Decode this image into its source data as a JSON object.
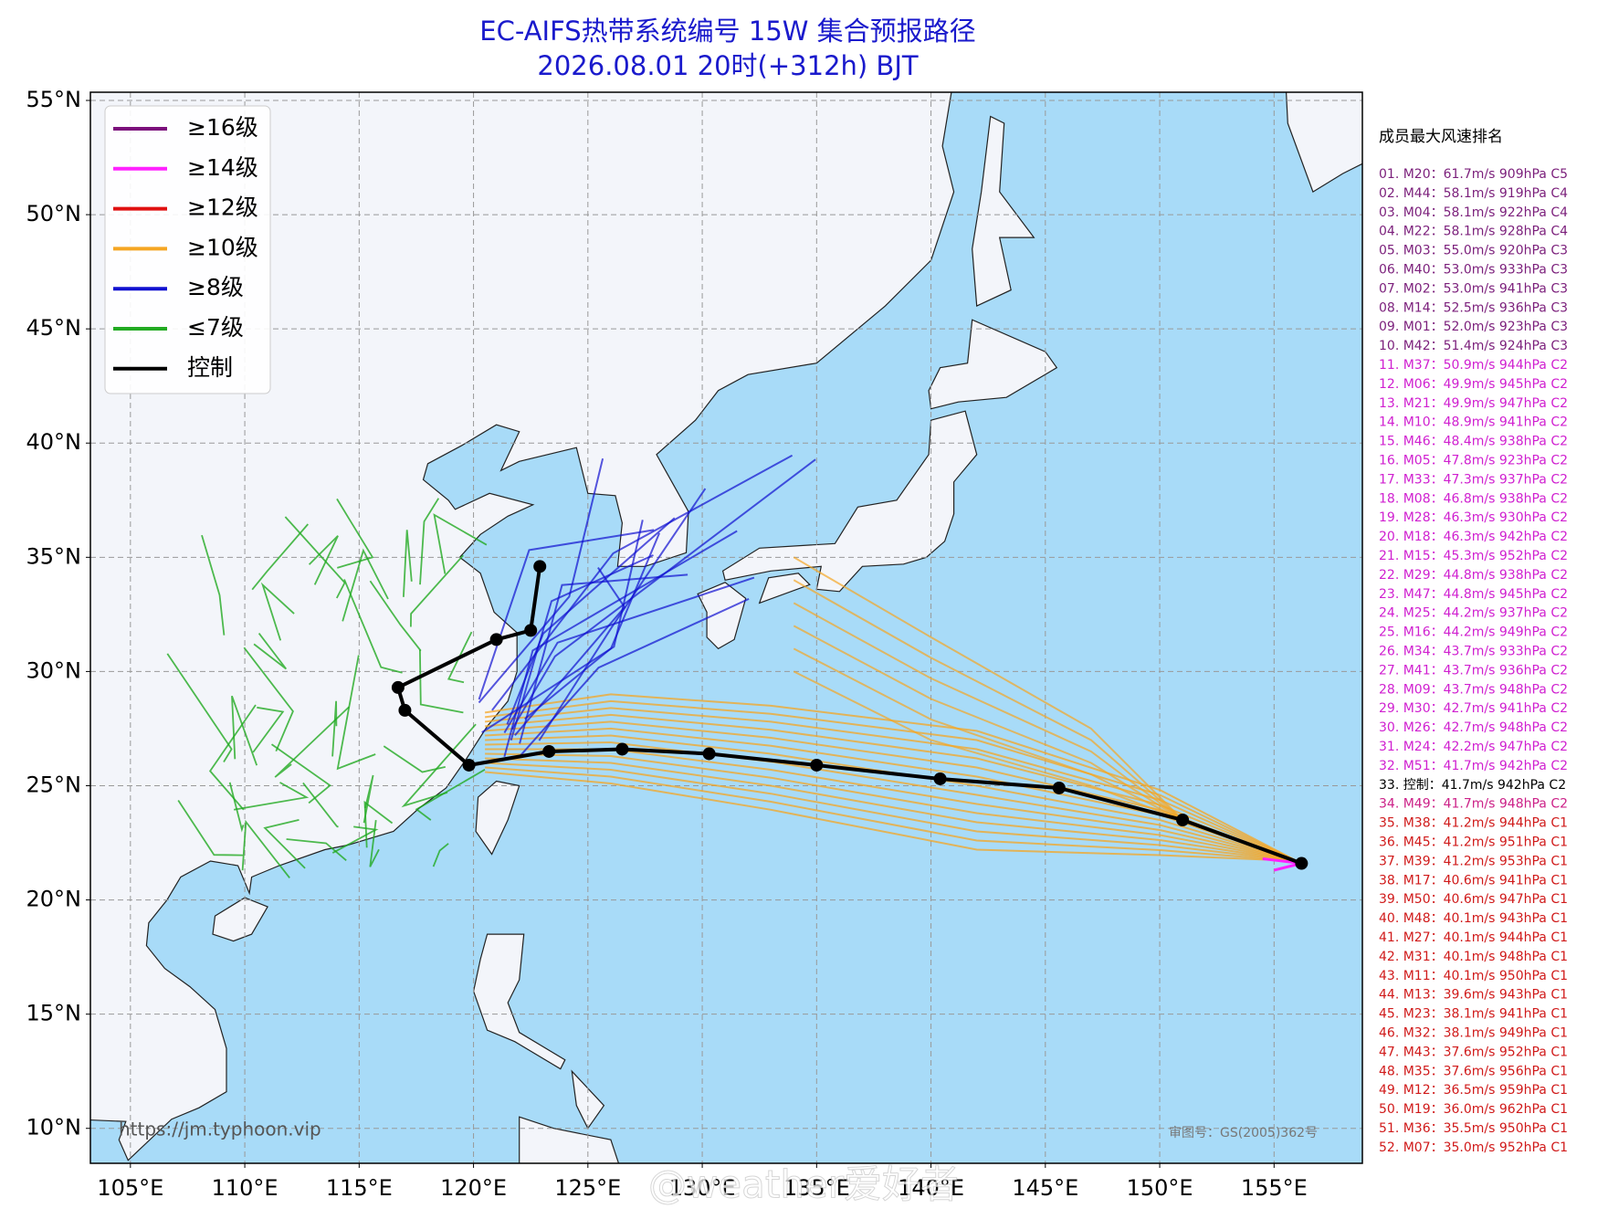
{
  "header": {
    "title": "EC-AIFS热带系统编号 15W 集合预报路径",
    "subtitle": "2026.08.01 20时(+312h) BJT"
  },
  "map": {
    "lon_range": [
      103.25,
      158.86
    ],
    "lat_range": [
      8.47,
      55.36
    ],
    "lat_ticks": [
      {
        "value": 55,
        "label": "55°N"
      },
      {
        "value": 50,
        "label": "50°N"
      },
      {
        "value": 45,
        "label": "45°N"
      },
      {
        "value": 40,
        "label": "40°N"
      },
      {
        "value": 35,
        "label": "35°N"
      },
      {
        "value": 30,
        "label": "30°N"
      },
      {
        "value": 25,
        "label": "25°N"
      },
      {
        "value": 20,
        "label": "20°N"
      },
      {
        "value": 15,
        "label": "15°N"
      },
      {
        "value": 10,
        "label": "10°N"
      }
    ],
    "lon_ticks": [
      {
        "value": 105,
        "label": "105°E"
      },
      {
        "value": 110,
        "label": "110°E"
      },
      {
        "value": 115,
        "label": "115°E"
      },
      {
        "value": 120,
        "label": "120°E"
      },
      {
        "value": 125,
        "label": "125°E"
      },
      {
        "value": 130,
        "label": "130°E"
      },
      {
        "value": 135,
        "label": "135°E"
      },
      {
        "value": 140,
        "label": "140°E"
      },
      {
        "value": 145,
        "label": "145°E"
      },
      {
        "value": 150,
        "label": "150°E"
      },
      {
        "value": 155,
        "label": "155°E"
      }
    ],
    "grid": true
  },
  "legend": [
    {
      "label": "≥16级",
      "color": "#7b0f7b"
    },
    {
      "label": "≥14级",
      "color": "#ff22ff"
    },
    {
      "label": "≥12级",
      "color": "#e01010"
    },
    {
      "label": "≥10级",
      "color": "#f5a623"
    },
    {
      "label": "≥8级",
      "color": "#1010d0"
    },
    {
      "label": "≤7级",
      "color": "#22aa22"
    },
    {
      "label": "控制",
      "color": "#000000"
    }
  ],
  "control_track": {
    "color": "#000000",
    "lon": [
      156.2,
      151.0,
      145.6,
      140.4,
      135.0,
      130.3,
      126.5,
      123.3,
      119.8,
      117.0,
      116.7,
      121.0,
      122.5,
      122.9
    ],
    "lat": [
      21.6,
      23.5,
      24.9,
      25.3,
      25.9,
      26.4,
      26.6,
      26.5,
      25.9,
      28.3,
      29.3,
      31.4,
      31.8,
      34.6
    ]
  },
  "ranking": {
    "title": "成员最大风速排名",
    "items": [
      {
        "text": "01. M20：61.7m/s 909hPa C5",
        "color": "#7b1f7b"
      },
      {
        "text": "02. M44：58.1m/s 919hPa C4",
        "color": "#7b1f7b"
      },
      {
        "text": "03. M04：58.1m/s 922hPa C4",
        "color": "#7b1f7b"
      },
      {
        "text": "04. M22：58.1m/s 928hPa C4",
        "color": "#7b1f7b"
      },
      {
        "text": "05. M03：55.0m/s 920hPa C3",
        "color": "#7b1f7b"
      },
      {
        "text": "06. M40：53.0m/s 933hPa C3",
        "color": "#7b1f7b"
      },
      {
        "text": "07. M02：53.0m/s 941hPa C3",
        "color": "#7b1f7b"
      },
      {
        "text": "08. M14：52.5m/s 936hPa C3",
        "color": "#7b1f7b"
      },
      {
        "text": "09. M01：52.0m/s 923hPa C3",
        "color": "#7b1f7b"
      },
      {
        "text": "10. M42：51.4m/s 924hPa C3",
        "color": "#7b1f7b"
      },
      {
        "text": "11. M37：50.9m/s 944hPa C2",
        "color": "#d020d0"
      },
      {
        "text": "12. M06：49.9m/s 945hPa C2",
        "color": "#d020d0"
      },
      {
        "text": "13. M21：49.9m/s 947hPa C2",
        "color": "#d020d0"
      },
      {
        "text": "14. M10：48.9m/s 941hPa C2",
        "color": "#d020d0"
      },
      {
        "text": "15. M46：48.4m/s 938hPa C2",
        "color": "#d020d0"
      },
      {
        "text": "16. M05：47.8m/s 923hPa C2",
        "color": "#d020d0"
      },
      {
        "text": "17. M33：47.3m/s 937hPa C2",
        "color": "#d020d0"
      },
      {
        "text": "18. M08：46.8m/s 938hPa C2",
        "color": "#d020d0"
      },
      {
        "text": "19. M28：46.3m/s 930hPa C2",
        "color": "#d020d0"
      },
      {
        "text": "20. M18：46.3m/s 942hPa C2",
        "color": "#d020d0"
      },
      {
        "text": "21. M15：45.3m/s 952hPa C2",
        "color": "#d020d0"
      },
      {
        "text": "22. M29：44.8m/s 938hPa C2",
        "color": "#d020d0"
      },
      {
        "text": "23. M47：44.8m/s 945hPa C2",
        "color": "#d020d0"
      },
      {
        "text": "24. M25：44.2m/s 937hPa C2",
        "color": "#d020d0"
      },
      {
        "text": "25. M16：44.2m/s 949hPa C2",
        "color": "#d020d0"
      },
      {
        "text": "26. M34：43.7m/s 933hPa C2",
        "color": "#d020d0"
      },
      {
        "text": "27. M41：43.7m/s 936hPa C2",
        "color": "#d020d0"
      },
      {
        "text": "28. M09：43.7m/s 948hPa C2",
        "color": "#d020d0"
      },
      {
        "text": "29. M30：42.7m/s 941hPa C2",
        "color": "#d020d0"
      },
      {
        "text": "30. M26：42.7m/s 948hPa C2",
        "color": "#d020d0"
      },
      {
        "text": "31. M24：42.2m/s 947hPa C2",
        "color": "#d020d0"
      },
      {
        "text": "32. M51：41.7m/s 942hPa C2",
        "color": "#d020d0"
      },
      {
        "text": "33. 控制：41.7m/s 942hPa C2",
        "color": "#000000"
      },
      {
        "text": "34. M49：41.7m/s 948hPa C2",
        "color": "#cc2288"
      },
      {
        "text": "35. M38：41.2m/s 944hPa C1",
        "color": "#d01a1a"
      },
      {
        "text": "36. M45：41.2m/s 951hPa C1",
        "color": "#d01a1a"
      },
      {
        "text": "37. M39：41.2m/s 953hPa C1",
        "color": "#d01a1a"
      },
      {
        "text": "38. M17：40.6m/s 941hPa C1",
        "color": "#d01a1a"
      },
      {
        "text": "39. M50：40.6m/s 947hPa C1",
        "color": "#d01a1a"
      },
      {
        "text": "40. M48：40.1m/s 943hPa C1",
        "color": "#d01a1a"
      },
      {
        "text": "41. M27：40.1m/s 944hPa C1",
        "color": "#d01a1a"
      },
      {
        "text": "42. M31：40.1m/s 948hPa C1",
        "color": "#d01a1a"
      },
      {
        "text": "43. M11：40.1m/s 950hPa C1",
        "color": "#d01a1a"
      },
      {
        "text": "44. M13：39.6m/s 943hPa C1",
        "color": "#d01a1a"
      },
      {
        "text": "45. M23：38.1m/s 941hPa C1",
        "color": "#d01a1a"
      },
      {
        "text": "46. M32：38.1m/s 949hPa C1",
        "color": "#d01a1a"
      },
      {
        "text": "47. M43：37.6m/s 952hPa C1",
        "color": "#d01a1a"
      },
      {
        "text": "48. M35：37.6m/s 956hPa C1",
        "color": "#d01a1a"
      },
      {
        "text": "49. M12：36.5m/s 959hPa C1",
        "color": "#d01a1a"
      },
      {
        "text": "50. M19：36.0m/s 962hPa C1",
        "color": "#d01a1a"
      },
      {
        "text": "51. M36：35.5m/s 950hPa C1",
        "color": "#d01a1a"
      },
      {
        "text": "52. M07：35.0m/s 952hPa C1",
        "color": "#d01a1a"
      }
    ]
  },
  "footer": {
    "url": "https://jm.typhoon.vip",
    "approval": "审图号：GS(2005)362号",
    "watermark": "@weather爱好者"
  }
}
